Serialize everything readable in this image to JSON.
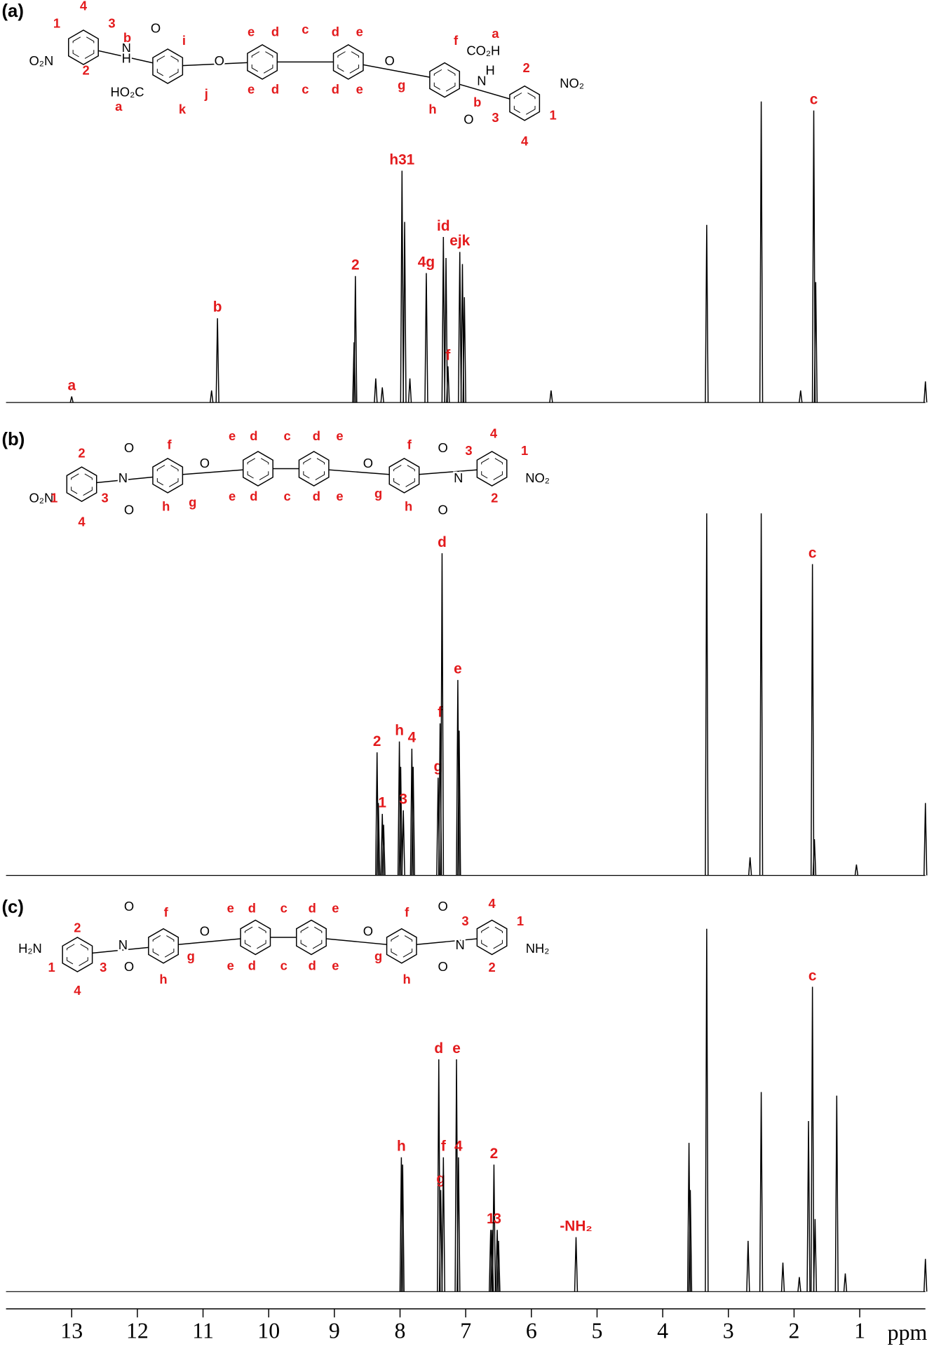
{
  "chart_data": [
    {
      "type": "spectrum",
      "panel_label": "(a)",
      "color": "#000000",
      "label_color": "#e31a1c",
      "xlim": [
        14,
        0
      ],
      "ylim": [
        0,
        100
      ],
      "x": [
        13.0,
        10.87,
        10.78,
        8.7,
        8.68,
        8.37,
        8.27,
        7.97,
        7.93,
        7.85,
        7.6,
        7.34,
        7.3,
        7.27,
        7.09,
        7.05,
        7.02,
        5.7,
        3.33,
        2.5,
        1.9,
        1.7,
        1.67,
        0.0
      ],
      "values": [
        2,
        4,
        28,
        20,
        42,
        8,
        5,
        77,
        60,
        8,
        43,
        55,
        48,
        12,
        50,
        46,
        35,
        4,
        59,
        100,
        4,
        97,
        40,
        7
      ],
      "peak_labels": [
        "a",
        null,
        "b",
        null,
        "2",
        null,
        null,
        "h31",
        null,
        null,
        "4g",
        "id",
        null,
        "f",
        "ejk",
        null,
        null,
        null,
        null,
        null,
        null,
        "c",
        null,
        null
      ],
      "structure_atoms": [
        "O₂N",
        "N",
        "H",
        "O",
        "HO₂C",
        "O",
        "O",
        "CO₂H",
        "N",
        "H",
        "O",
        "NO₂"
      ],
      "structure_labels": [
        "1",
        "4",
        "3",
        "2",
        "b",
        "a",
        "i",
        "j",
        "k",
        "e",
        "d",
        "e",
        "d",
        "c",
        "c",
        "d",
        "e",
        "d",
        "e",
        "f",
        "g",
        "h",
        "a",
        "b",
        "2",
        "3",
        "1",
        "4"
      ]
    },
    {
      "type": "spectrum",
      "panel_label": "(b)",
      "color": "#000000",
      "label_color": "#e31a1c",
      "xlim": [
        14,
        0
      ],
      "ylim": [
        0,
        100
      ],
      "x": [
        8.35,
        8.33,
        8.27,
        8.25,
        8.01,
        7.99,
        7.95,
        7.82,
        7.8,
        7.42,
        7.39,
        7.36,
        7.12,
        7.1,
        3.33,
        2.67,
        2.5,
        1.72,
        1.69,
        1.05,
        0.0
      ],
      "values": [
        34,
        20,
        17,
        14,
        37,
        30,
        18,
        35,
        30,
        27,
        42,
        89,
        54,
        40,
        100,
        5,
        100,
        86,
        10,
        3,
        20
      ],
      "peak_labels": [
        "2",
        null,
        "1",
        null,
        "h",
        null,
        "3",
        "4",
        null,
        "g",
        "f",
        "d",
        "e",
        null,
        null,
        null,
        null,
        "c",
        null,
        null,
        null
      ],
      "structure_atoms": [
        "O₂N",
        "N",
        "O",
        "O",
        "O",
        "O",
        "O",
        "O",
        "N",
        "NO₂"
      ],
      "structure_labels": [
        "2",
        "1",
        "3",
        "4",
        "f",
        "g",
        "h",
        "e",
        "d",
        "e",
        "d",
        "c",
        "c",
        "d",
        "e",
        "d",
        "e",
        "f",
        "g",
        "h",
        "3",
        "4",
        "1",
        "2"
      ]
    },
    {
      "type": "spectrum",
      "panel_label": "(c)",
      "color": "#000000",
      "label_color": "#e31a1c",
      "xlim": [
        14,
        0
      ],
      "ylim": [
        0,
        100
      ],
      "xticks": [
        13,
        12,
        11,
        10,
        9,
        8,
        7,
        6,
        5,
        4,
        3,
        2,
        1
      ],
      "xlabel": "ppm",
      "x": [
        7.98,
        7.96,
        7.41,
        7.38,
        7.34,
        7.14,
        7.11,
        6.62,
        6.6,
        6.57,
        6.52,
        6.5,
        5.32,
        3.6,
        3.58,
        3.33,
        2.7,
        2.5,
        2.17,
        1.92,
        1.78,
        1.72,
        1.68,
        1.35,
        1.22,
        0.0
      ],
      "values": [
        37,
        35,
        64,
        28,
        37,
        64,
        37,
        17,
        17,
        35,
        17,
        14,
        15,
        41,
        28,
        100,
        14,
        55,
        8,
        4,
        47,
        84,
        20,
        54,
        5,
        9
      ],
      "peak_labels": [
        "h",
        null,
        "d",
        "g",
        "f",
        "e",
        "4",
        "1",
        null,
        "2",
        "3",
        null,
        "-NH₂",
        null,
        null,
        null,
        null,
        null,
        null,
        null,
        null,
        "c",
        null,
        null,
        null,
        null
      ],
      "structure_atoms": [
        "H₂N",
        "N",
        "O",
        "O",
        "O",
        "O",
        "O",
        "O",
        "N",
        "NH₂"
      ],
      "structure_labels": [
        "2",
        "1",
        "3",
        "4",
        "f",
        "g",
        "h",
        "e",
        "d",
        "e",
        "d",
        "c",
        "c",
        "d",
        "e",
        "d",
        "e",
        "f",
        "g",
        "h",
        "3",
        "4",
        "1",
        "2"
      ]
    }
  ]
}
